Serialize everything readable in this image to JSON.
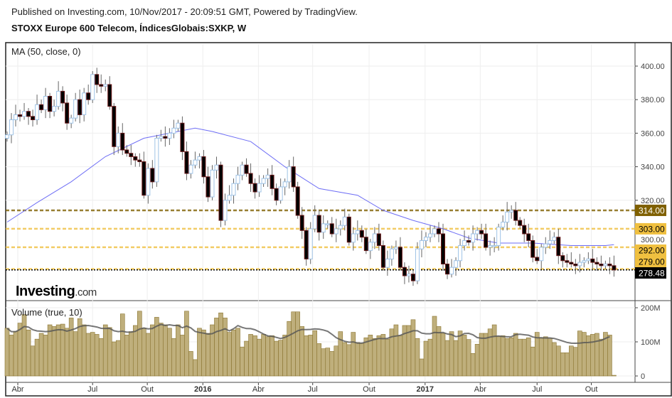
{
  "header": {
    "published": "Published on Investing.com, 10/Nov/2017 - 20:09:51 GMT, Powered by TradingView.",
    "symbol_title": "STOXX Europe 600 Telecom, ÍndicesGlobais:SXKP, W"
  },
  "logo": {
    "brand": "Investing",
    "suffix": ".com"
  },
  "chart_data": {
    "type": "candlestick",
    "title": "STOXX Europe 600 Telecom, ÍndicesGlobais:SXKP, W",
    "indicator_label": "MA (50, close, 0)",
    "volume_label": "Volume (true, 10)",
    "price_axis": {
      "ticks": [
        320,
        340,
        360,
        380,
        400
      ],
      "tick_labels": [
        "320.00",
        "340.00",
        "360.00",
        "380.00",
        "400.00"
      ],
      "hidden_tick_label": "300.00",
      "range": [
        262,
        413
      ]
    },
    "volume_axis": {
      "ticks": [
        0,
        100,
        200
      ],
      "tick_labels": [
        "0",
        "100M",
        "200M"
      ],
      "range_millions": [
        0,
        210
      ]
    },
    "time_labels": [
      {
        "label": "Abr",
        "week": 2.5,
        "bold": false
      },
      {
        "label": "Jul",
        "week": 20,
        "bold": false
      },
      {
        "label": "Out",
        "week": 32.8,
        "bold": false
      },
      {
        "label": "2016",
        "week": 45.8,
        "bold": true
      },
      {
        "label": "Abr",
        "week": 58.8,
        "bold": false
      },
      {
        "label": "Jul",
        "week": 71.5,
        "bold": false
      },
      {
        "label": "Out",
        "week": 84.7,
        "bold": false
      },
      {
        "label": "2017",
        "week": 97.8,
        "bold": true
      },
      {
        "label": "Abr",
        "week": 110.7,
        "bold": false
      },
      {
        "label": "Jul",
        "week": 124,
        "bold": false
      },
      {
        "label": "Out",
        "week": 136.7,
        "bold": false
      }
    ],
    "closes": [
      359,
      368,
      371,
      370,
      373,
      370,
      368,
      377,
      374,
      382,
      373,
      376,
      385,
      378,
      366,
      369,
      380,
      371,
      384,
      380,
      395,
      389,
      388,
      389,
      376,
      352,
      360,
      350,
      348,
      346,
      344,
      343,
      323,
      339,
      331,
      357,
      358,
      357,
      360,
      363,
      366,
      349,
      336,
      341,
      344,
      346,
      334,
      322,
      338,
      341,
      308,
      320,
      323,
      330,
      335,
      341,
      336,
      330,
      325,
      330,
      333,
      335,
      327,
      320,
      328,
      331,
      340,
      328,
      311,
      302,
      285,
      303,
      311,
      301,
      306,
      306,
      300,
      303,
      305,
      310,
      295,
      300,
      302,
      298,
      290,
      295,
      300,
      293,
      280,
      285,
      291,
      292,
      280,
      275,
      276,
      272,
      291,
      296,
      298,
      300,
      303,
      300,
      282,
      276,
      280,
      284,
      293,
      296,
      295,
      300,
      302,
      300,
      292,
      293,
      293,
      304,
      307,
      313,
      314,
      308,
      305,
      300,
      296,
      286,
      284,
      292,
      294,
      296,
      298,
      287,
      284,
      283,
      282,
      281,
      283,
      284,
      285,
      283,
      282,
      281,
      282,
      281,
      278.48
    ],
    "first_open": 357,
    "volumes_millions": [
      140,
      120,
      130,
      155,
      180,
      135,
      88,
      108,
      125,
      120,
      150,
      145,
      150,
      152,
      140,
      170,
      130,
      168,
      150,
      125,
      128,
      122,
      110,
      150,
      142,
      100,
      104,
      182,
      120,
      130,
      148,
      190,
      140,
      125,
      150,
      172,
      155,
      150,
      140,
      110,
      150,
      120,
      190,
      72,
      48,
      140,
      135,
      125,
      150,
      170,
      185,
      170,
      128,
      135,
      140,
      85,
      102,
      122,
      118,
      108,
      122,
      115,
      118,
      102,
      105,
      120,
      160,
      188,
      188,
      145,
      118,
      120,
      133,
      95,
      80,
      82,
      72,
      88,
      130,
      98,
      92,
      128,
      98,
      95,
      112,
      120,
      110,
      118,
      122,
      108,
      138,
      150,
      118,
      148,
      148,
      165,
      110,
      50,
      102,
      108,
      175,
      145,
      125,
      104,
      130,
      104,
      132,
      120,
      107,
      66,
      93,
      125,
      125,
      138,
      150,
      115,
      118,
      110,
      112,
      125,
      108,
      108,
      112,
      85,
      128,
      112,
      115,
      110,
      98,
      88,
      68,
      68,
      88,
      84,
      132,
      128,
      118,
      122,
      125,
      108,
      128,
      120,
      2
    ],
    "ma50_anchors": [
      [
        0,
        307
      ],
      [
        7,
        318.6
      ],
      [
        15,
        331
      ],
      [
        23,
        346
      ],
      [
        32,
        357
      ],
      [
        40,
        361
      ],
      [
        44,
        363
      ],
      [
        48,
        361
      ],
      [
        57,
        355
      ],
      [
        65,
        340
      ],
      [
        73,
        327
      ],
      [
        82,
        323
      ],
      [
        88,
        314
      ],
      [
        95,
        308
      ],
      [
        102,
        303
      ],
      [
        108,
        297.5
      ],
      [
        115,
        294.5
      ],
      [
        123,
        294.5
      ],
      [
        132,
        293
      ],
      [
        140,
        293
      ],
      [
        142,
        293.5
      ]
    ],
    "levels": [
      {
        "value": 314.0,
        "label": "314.00",
        "color": "#7f6000",
        "text_color": "#ffffff",
        "style": "dashed"
      },
      {
        "value": 303.0,
        "label": "303.00",
        "color": "#f0c040",
        "text_color": "#000000",
        "style": "dashed"
      },
      {
        "value": 292.0,
        "label": "292.00",
        "color": "#f0c040",
        "text_color": "#000000",
        "style": "dashed"
      },
      {
        "value": 279.0,
        "label": "279.00",
        "color": "#f0c040",
        "text_color": "#000000",
        "style": "dashed"
      },
      {
        "value": 278.48,
        "label": "278.48",
        "color": "#000000",
        "text_color": "#ffffff",
        "style": "dotted"
      }
    ],
    "colors": {
      "up": "#9fc3e6",
      "down_fill": "#000000",
      "down_border": "#6b1a1a",
      "ma": "#6e6ef5",
      "volume": "#bfaf7c",
      "volume_border": "#8a7430",
      "volume_ma": "#555555"
    }
  }
}
